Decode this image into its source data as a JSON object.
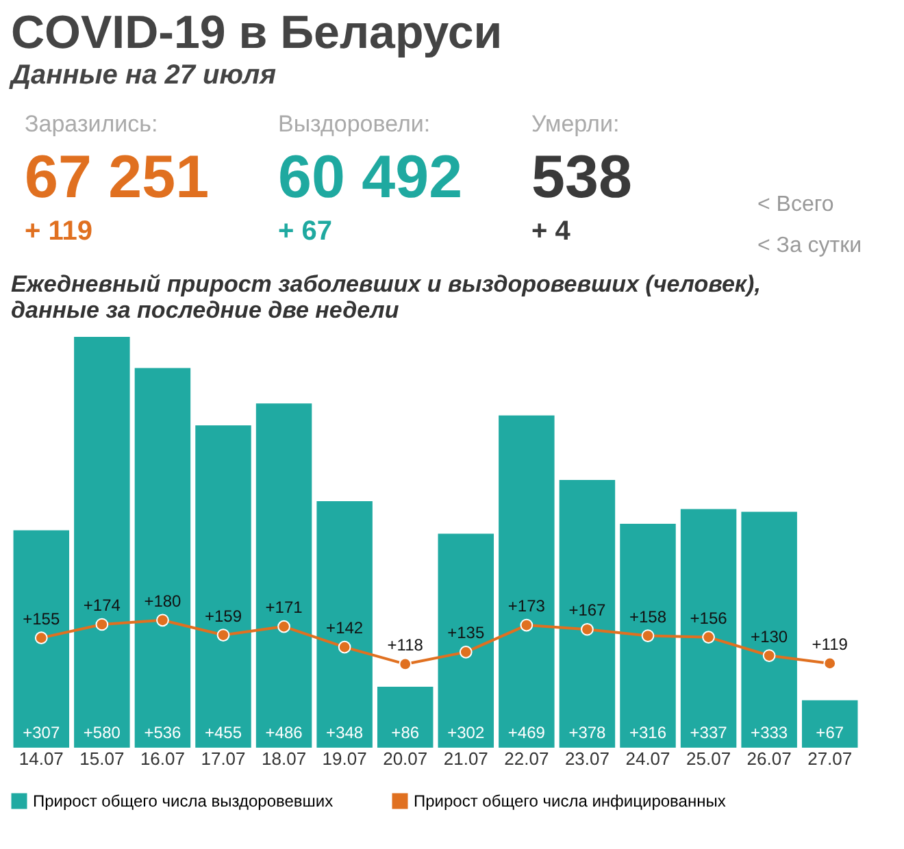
{
  "chart_data": [
    {
      "type": "other",
      "title": "COVID-19 в Беларуси",
      "subtitle": "Данные на 27 июля",
      "annotations": [
        "Заразились:",
        "67 251",
        "+ 119",
        "Выздоровели:",
        "60 492",
        "+ 67",
        "Умерли:",
        "538",
        "+ 4",
        "<  Всего",
        "<  За сутки"
      ],
      "colors": [
        "#e07020",
        "#1fa9a0",
        "#3a3a3a"
      ]
    },
    {
      "type": "bar",
      "title": [
        "Ежедневный прирост заболевших и выздоровевших (человек),",
        "данные за последние две недели"
      ],
      "categories": [
        "14.07",
        "15.07",
        "16.07",
        "17.07",
        "18.07",
        "19.07",
        "20.07",
        "21.07",
        "22.07",
        "23.07",
        "24.07",
        "25.07",
        "26.07",
        "27.07"
      ],
      "series": [
        {
          "name": "Прирост общего числа выздоровевших",
          "type": "bar",
          "color": "#20aaa2",
          "values": [
            307,
            580,
            536,
            455,
            486,
            348,
            86,
            302,
            469,
            378,
            316,
            337,
            333,
            67
          ],
          "value_labels": [
            "+307",
            "+580",
            "+536",
            "+455",
            "+486",
            "+348",
            "+86",
            "+302",
            "+469",
            "+378",
            "+316",
            "+337",
            "+333",
            "+67"
          ]
        },
        {
          "name": "Прирост общего числа инфицированных",
          "type": "line",
          "color": "#e07020",
          "marker": "circle",
          "values": [
            155,
            174,
            180,
            159,
            171,
            142,
            118,
            135,
            173,
            167,
            158,
            156,
            130,
            119
          ],
          "value_labels": [
            "+155",
            "+174",
            "+180",
            "+159",
            "+171",
            "+142",
            "+118",
            "+135",
            "+173",
            "+167",
            "+158",
            "+156",
            "+130",
            "+119"
          ]
        }
      ],
      "legend": "bottom",
      "tick_labels": "x"
    }
  ]
}
